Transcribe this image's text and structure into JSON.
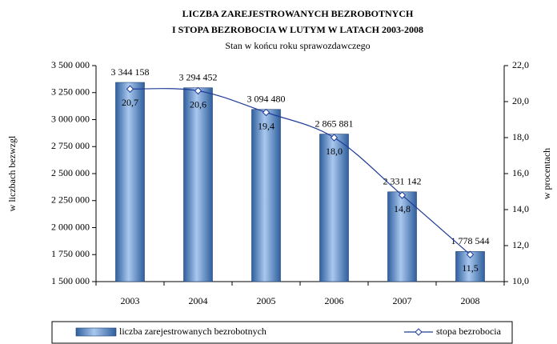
{
  "chart_data": {
    "type": "bar",
    "title": [
      "LICZBA ZAREJESTROWANYCH BEZROBOTNYCH",
      "I STOPA BEZROBOCIA W LUTYM W LATACH 2003-2008"
    ],
    "subtitle": "Stan w końcu roku sprawozdawczego",
    "ylabel": "w liczbach bezwzgl",
    "y2label": "w procentach",
    "categories": [
      "2003",
      "2004",
      "2005",
      "2006",
      "2007",
      "2008"
    ],
    "series": [
      {
        "name": "liczba zarejestrowanych bezrobotnych",
        "type": "bar",
        "color": "#4f86c6",
        "values": [
          3344158,
          3294452,
          3094480,
          2865881,
          2331142,
          1778544
        ],
        "value_labels": [
          "3 344 158",
          "3 294 452",
          "3 094 480",
          "2 865 881",
          "2 331 142",
          "1 778 544"
        ]
      },
      {
        "name": "stopa bezrobocia",
        "type": "line",
        "axis": "y2",
        "color": "#1f3c99",
        "values": [
          20.7,
          20.6,
          19.4,
          18.0,
          14.8,
          11.5
        ],
        "value_labels": [
          "20,7",
          "20,6",
          "19,4",
          "18,0",
          "14,8",
          "11,5"
        ]
      }
    ],
    "ylim": [
      1500000,
      3500000
    ],
    "yticks": [
      {
        "value": 1500000,
        "label": "1 500 000"
      },
      {
        "value": 1750000,
        "label": "1 750 000"
      },
      {
        "value": 2000000,
        "label": "2 000 000"
      },
      {
        "value": 2250000,
        "label": "2 250 000"
      },
      {
        "value": 2500000,
        "label": "2 500 000"
      },
      {
        "value": 2750000,
        "label": "2 750 000"
      },
      {
        "value": 3000000,
        "label": "3 000 000"
      },
      {
        "value": 3250000,
        "label": "3 250 000"
      },
      {
        "value": 3500000,
        "label": "3 500 000"
      }
    ],
    "y2lim": [
      10,
      22
    ],
    "y2ticks": [
      {
        "value": 10,
        "label": "10,0"
      },
      {
        "value": 12,
        "label": "12,0"
      },
      {
        "value": 14,
        "label": "14,0"
      },
      {
        "value": 16,
        "label": "16,0"
      },
      {
        "value": 18,
        "label": "18,0"
      },
      {
        "value": 20,
        "label": "20,0"
      },
      {
        "value": 22,
        "label": "22,0"
      }
    ],
    "legend": "bottom"
  }
}
